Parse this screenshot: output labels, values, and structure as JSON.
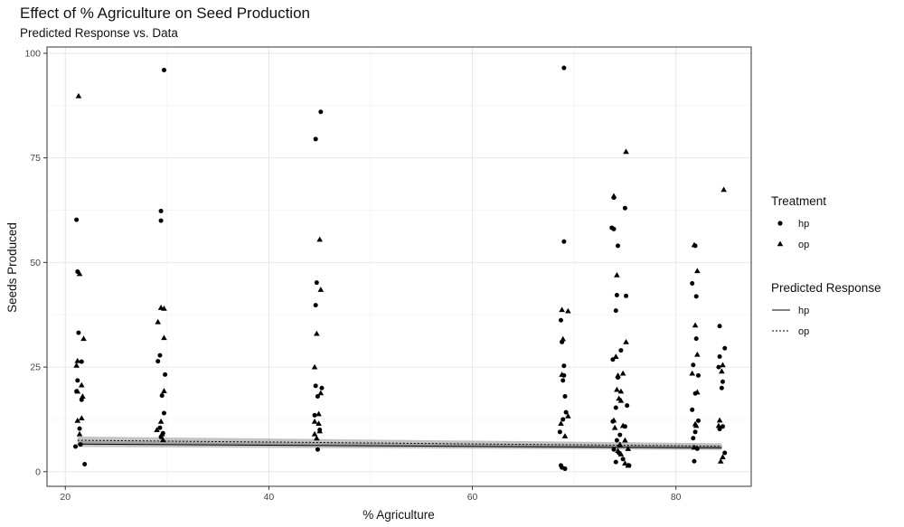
{
  "chart_data": {
    "type": "scatter",
    "title": "Effect of % Agriculture on Seed Production",
    "subtitle": "Predicted Response vs. Data",
    "xlabel": "% Agriculture",
    "ylabel": "Seeds Produced",
    "xlim": [
      18.2,
      87.4
    ],
    "ylim": [
      -3.5,
      101.5
    ],
    "x_ticks": [
      20,
      40,
      60,
      80
    ],
    "y_ticks": [
      0,
      25,
      50,
      75,
      100
    ],
    "grid": true,
    "legend_position": "right",
    "legend": {
      "treatment_title": "Treatment",
      "treatment_items": [
        {
          "label": "hp",
          "shape": "circle"
        },
        {
          "label": "op",
          "shape": "triangle"
        }
      ],
      "response_title": "Predicted Response",
      "response_items": [
        {
          "label": "hp",
          "line": "solid"
        },
        {
          "label": "op",
          "line": "dashed"
        }
      ]
    },
    "series": [
      {
        "name": "hp",
        "shape": "circle",
        "points": [
          [
            21.1,
            60.2
          ],
          [
            21.2,
            47.8
          ],
          [
            21.3,
            33.2
          ],
          [
            21.2,
            21.8
          ],
          [
            21.1,
            19.2
          ],
          [
            21.6,
            17.2
          ],
          [
            21.4,
            10.3
          ],
          [
            21.5,
            6.5
          ],
          [
            21.9,
            1.8
          ],
          [
            21.0,
            6.0
          ],
          [
            21.6,
            26.3
          ],
          [
            29.7,
            96.0
          ],
          [
            29.4,
            62.3
          ],
          [
            29.4,
            60.0
          ],
          [
            29.3,
            27.8
          ],
          [
            29.1,
            26.4
          ],
          [
            29.8,
            23.2
          ],
          [
            29.5,
            18.2
          ],
          [
            29.7,
            14.0
          ],
          [
            29.3,
            10.5
          ],
          [
            29.6,
            9.2
          ],
          [
            29.4,
            8.3
          ],
          [
            45.1,
            86.0
          ],
          [
            44.6,
            79.5
          ],
          [
            44.7,
            45.2
          ],
          [
            44.6,
            39.8
          ],
          [
            44.6,
            20.5
          ],
          [
            45.2,
            20.0
          ],
          [
            44.8,
            18.0
          ],
          [
            44.5,
            13.5
          ],
          [
            45.0,
            10.0
          ],
          [
            44.8,
            5.3
          ],
          [
            69.0,
            96.5
          ],
          [
            69.0,
            55.0
          ],
          [
            68.7,
            36.2
          ],
          [
            68.8,
            31.0
          ],
          [
            69.0,
            25.3
          ],
          [
            69.0,
            23.0
          ],
          [
            68.9,
            21.8
          ],
          [
            69.1,
            18.0
          ],
          [
            69.2,
            14.2
          ],
          [
            68.9,
            12.5
          ],
          [
            68.6,
            9.5
          ],
          [
            68.7,
            1.5
          ],
          [
            68.8,
            1.0
          ],
          [
            69.1,
            0.7
          ],
          [
            73.9,
            65.5
          ],
          [
            73.7,
            58.3
          ],
          [
            73.9,
            58.0
          ],
          [
            75.0,
            63.0
          ],
          [
            74.3,
            54.0
          ],
          [
            74.2,
            42.2
          ],
          [
            75.1,
            42.0
          ],
          [
            74.1,
            38.5
          ],
          [
            74.6,
            29.0
          ],
          [
            73.8,
            26.8
          ],
          [
            74.3,
            22.5
          ],
          [
            75.2,
            15.8
          ],
          [
            74.1,
            15.3
          ],
          [
            73.8,
            12.0
          ],
          [
            75.0,
            10.8
          ],
          [
            74.5,
            8.8
          ],
          [
            74.2,
            7.5
          ],
          [
            73.9,
            5.3
          ],
          [
            74.4,
            4.5
          ],
          [
            74.8,
            3.0
          ],
          [
            74.1,
            2.3
          ],
          [
            75.4,
            1.5
          ],
          [
            81.9,
            54.0
          ],
          [
            81.6,
            45.0
          ],
          [
            82.0,
            41.9
          ],
          [
            82.0,
            31.8
          ],
          [
            81.7,
            25.5
          ],
          [
            82.2,
            23.0
          ],
          [
            81.9,
            18.7
          ],
          [
            81.6,
            14.8
          ],
          [
            82.2,
            12.2
          ],
          [
            81.9,
            9.5
          ],
          [
            81.7,
            8.0
          ],
          [
            82.1,
            5.5
          ],
          [
            81.8,
            2.5
          ],
          [
            84.3,
            34.8
          ],
          [
            84.8,
            29.5
          ],
          [
            84.3,
            27.5
          ],
          [
            84.2,
            25.0
          ],
          [
            84.6,
            21.5
          ],
          [
            84.5,
            20.0
          ],
          [
            84.6,
            10.8
          ],
          [
            84.3,
            10.2
          ],
          [
            84.8,
            4.5
          ]
        ]
      },
      {
        "name": "op",
        "shape": "triangle",
        "points": [
          [
            21.3,
            89.8
          ],
          [
            21.4,
            47.3
          ],
          [
            21.8,
            31.8
          ],
          [
            21.1,
            25.4
          ],
          [
            21.2,
            26.5
          ],
          [
            21.6,
            20.7
          ],
          [
            21.2,
            19.2
          ],
          [
            21.7,
            18.0
          ],
          [
            21.2,
            12.2
          ],
          [
            21.6,
            12.8
          ],
          [
            21.4,
            9.0
          ],
          [
            29.7,
            39.0
          ],
          [
            29.4,
            39.2
          ],
          [
            29.1,
            35.8
          ],
          [
            29.7,
            32.0
          ],
          [
            29.7,
            19.3
          ],
          [
            29.4,
            12.0
          ],
          [
            29.0,
            10.0
          ],
          [
            29.5,
            9.0
          ],
          [
            29.6,
            7.6
          ],
          [
            45.0,
            55.5
          ],
          [
            45.1,
            43.5
          ],
          [
            44.7,
            33.0
          ],
          [
            44.5,
            25.0
          ],
          [
            45.1,
            18.8
          ],
          [
            44.9,
            13.8
          ],
          [
            44.5,
            12.0
          ],
          [
            44.9,
            11.5
          ],
          [
            45.0,
            9.7
          ],
          [
            44.5,
            9.0
          ],
          [
            44.7,
            8.0
          ],
          [
            69.4,
            38.4
          ],
          [
            68.8,
            38.7
          ],
          [
            68.9,
            31.7
          ],
          [
            68.8,
            23.2
          ],
          [
            69.4,
            13.3
          ],
          [
            68.7,
            11.5
          ],
          [
            69.1,
            8.5
          ],
          [
            75.1,
            76.5
          ],
          [
            73.9,
            65.9
          ],
          [
            74.2,
            47.0
          ],
          [
            75.1,
            31.0
          ],
          [
            74.1,
            27.5
          ],
          [
            74.8,
            23.5
          ],
          [
            74.3,
            23.0
          ],
          [
            74.2,
            19.6
          ],
          [
            74.6,
            19.2
          ],
          [
            74.4,
            17.5
          ],
          [
            74.6,
            17.0
          ],
          [
            73.9,
            12.3
          ],
          [
            74.8,
            11.0
          ],
          [
            74.0,
            10.5
          ],
          [
            75.0,
            7.5
          ],
          [
            74.5,
            6.5
          ],
          [
            75.3,
            5.5
          ],
          [
            74.3,
            5.0
          ],
          [
            74.6,
            4.2
          ],
          [
            75.0,
            2.0
          ],
          [
            75.3,
            1.5
          ],
          [
            82.1,
            48.0
          ],
          [
            81.8,
            54.2
          ],
          [
            81.9,
            35.0
          ],
          [
            82.1,
            28.0
          ],
          [
            81.6,
            23.5
          ],
          [
            82.1,
            19.0
          ],
          [
            81.9,
            11.4
          ],
          [
            82.0,
            11.0
          ],
          [
            81.8,
            5.8
          ],
          [
            84.7,
            67.4
          ],
          [
            84.6,
            25.5
          ],
          [
            84.5,
            24.0
          ],
          [
            84.3,
            12.3
          ],
          [
            84.2,
            11.0
          ],
          [
            84.6,
            3.5
          ],
          [
            84.4,
            2.5
          ]
        ]
      }
    ],
    "predicted_lines": [
      {
        "name": "hp",
        "dash": "solid",
        "x": [
          21.2,
          84.5
        ],
        "y": [
          6.6,
          5.7
        ],
        "ci_low": [
          5.9,
          5.2
        ],
        "ci_high": [
          7.3,
          6.2
        ]
      },
      {
        "name": "op",
        "dash": "dashed",
        "x": [
          21.2,
          84.5
        ],
        "y": [
          7.5,
          6.1
        ],
        "ci_low": [
          6.6,
          5.4
        ],
        "ci_high": [
          8.4,
          6.8
        ]
      }
    ]
  }
}
